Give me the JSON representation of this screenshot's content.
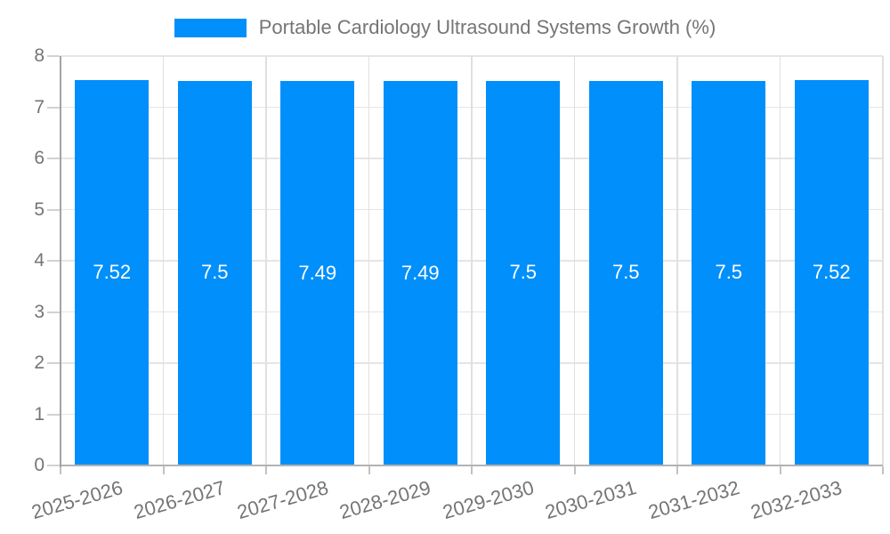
{
  "legend": {
    "label": "Portable Cardiology Ultrasound Systems Growth (%)"
  },
  "chart_data": {
    "type": "bar",
    "title": "Portable Cardiology Ultrasound Systems Growth (%)",
    "categories": [
      "2025-2026",
      "2026-2027",
      "2027-2028",
      "2028-2029",
      "2029-2030",
      "2030-2031",
      "2031-2032",
      "2032-2033"
    ],
    "series": [
      {
        "name": "Portable Cardiology Ultrasound Systems Growth (%)",
        "values": [
          7.52,
          7.5,
          7.49,
          7.49,
          7.5,
          7.5,
          7.5,
          7.52
        ],
        "value_labels": [
          "7.52",
          "7.5",
          "7.49",
          "7.49",
          "7.5",
          "7.5",
          "7.5",
          "7.52"
        ]
      }
    ],
    "xlabel": "",
    "ylabel": "",
    "ylim": [
      0,
      8
    ],
    "yticks": [
      0,
      1,
      2,
      3,
      4,
      5,
      6,
      7,
      8
    ],
    "grid": true,
    "legend_position": "top",
    "value_label_position": "inside-center",
    "colors": {
      "bar": "#008FFB",
      "grid": "#e5e5e5",
      "axis_line": "#a8a8a8",
      "tick": "#c9c9c9",
      "label_text": "#757575",
      "value_text": "#ffffff",
      "background": "#ffffff"
    }
  }
}
